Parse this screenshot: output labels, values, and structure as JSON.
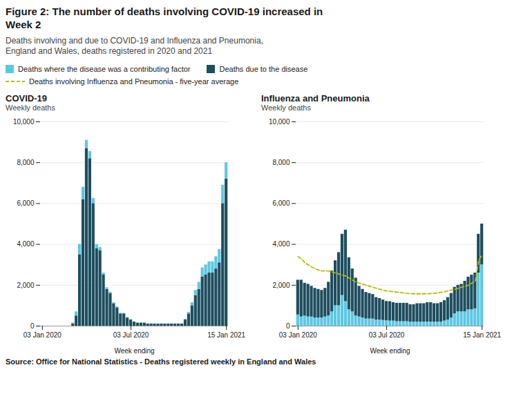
{
  "title": [
    "Figure 2: The number of deaths involving COVID-19 increased in",
    "Week 2"
  ],
  "subtitle": [
    "Deaths involving and due to COVID-19 and Influenza and Pneumonia,",
    "England and Wales, deaths registered in 2020 and 2021"
  ],
  "source": "Source: Office for National Statistics - Deaths registered weekly in England and Wales",
  "chart_data": [
    {
      "type": "bar",
      "title": "COVID-19",
      "y_label": "Weekly deaths",
      "x_label": "Week ending",
      "stacked": true,
      "grid": true,
      "categories": [
        "03 Jan 2020",
        null,
        null,
        null,
        null,
        null,
        null,
        null,
        null,
        null,
        null,
        null,
        null,
        null,
        null,
        null,
        null,
        null,
        null,
        null,
        null,
        null,
        null,
        null,
        null,
        null,
        "03 Jul 2020",
        null,
        null,
        null,
        null,
        null,
        null,
        null,
        null,
        null,
        null,
        null,
        null,
        null,
        null,
        null,
        null,
        null,
        null,
        null,
        null,
        null,
        null,
        null,
        null,
        null,
        null,
        null,
        "15 Jan 2021"
      ],
      "ylim": [
        0,
        10000
      ],
      "yticks": [
        0,
        {
          "value": 2000,
          "label": "2,000"
        },
        {
          "value": 4000,
          "label": "4,000"
        },
        {
          "value": 6000,
          "label": "6,000"
        },
        {
          "value": 8000,
          "label": "8,000"
        },
        {
          "value": 10000,
          "label": "10,000"
        }
      ],
      "series": [
        {
          "name": "Deaths due to the disease",
          "color": "#1D4E5F",
          "type": "bar",
          "values": [
            0,
            0,
            0,
            0,
            0,
            0,
            0,
            0,
            0,
            100,
            500,
            3500,
            6200,
            8700,
            8200,
            6000,
            3800,
            3700,
            2500,
            1800,
            1600,
            1100,
            900,
            600,
            600,
            400,
            300,
            200,
            150,
            150,
            150,
            100,
            100,
            100,
            100,
            100,
            100,
            100,
            100,
            100,
            100,
            100,
            300,
            600,
            1000,
            1500,
            1800,
            2400,
            2500,
            2600,
            2600,
            2800,
            3100,
            6000,
            7200
          ]
        },
        {
          "name": "Deaths where the disease was a contributing factor",
          "color": "#5BC8E3",
          "type": "bar",
          "values": [
            0,
            0,
            0,
            0,
            0,
            0,
            0,
            0,
            0,
            50,
            200,
            500,
            600,
            400,
            350,
            250,
            200,
            150,
            100,
            80,
            60,
            50,
            40,
            30,
            30,
            25,
            20,
            15,
            15,
            15,
            15,
            15,
            15,
            15,
            15,
            15,
            15,
            15,
            15,
            15,
            15,
            15,
            40,
            80,
            150,
            250,
            350,
            450,
            500,
            550,
            550,
            600,
            650,
            900,
            800
          ]
        }
      ]
    },
    {
      "type": "bar",
      "title": "Influenza and Pneumonia",
      "y_label": "Weekly deaths",
      "x_label": "Week ending",
      "stacked": true,
      "grid": true,
      "categories": [
        "03 Jan 2020",
        null,
        null,
        null,
        null,
        null,
        null,
        null,
        null,
        null,
        null,
        null,
        null,
        null,
        null,
        null,
        null,
        null,
        null,
        null,
        null,
        null,
        null,
        null,
        null,
        null,
        "03 Jul 2020",
        null,
        null,
        null,
        null,
        null,
        null,
        null,
        null,
        null,
        null,
        null,
        null,
        null,
        null,
        null,
        null,
        null,
        null,
        null,
        null,
        null,
        null,
        null,
        null,
        null,
        null,
        null,
        "15 Jan 2021"
      ],
      "ylim": [
        0,
        10000
      ],
      "yticks": [
        0,
        {
          "value": 2000,
          "label": "2,000"
        },
        {
          "value": 4000,
          "label": "4,000"
        },
        {
          "value": 6000,
          "label": "6,000"
        },
        {
          "value": 8000,
          "label": "8,000"
        },
        {
          "value": 10000,
          "label": "10,000"
        }
      ],
      "series": [
        {
          "name": "Deaths where the disease was a contributing factor",
          "color": "#5BC8E3",
          "type": "bar",
          "values": [
            550,
            450,
            500,
            450,
            450,
            400,
            400,
            400,
            450,
            500,
            700,
            1000,
            1000,
            1500,
            1200,
            800,
            700,
            500,
            450,
            400,
            350,
            350,
            350,
            300,
            300,
            280,
            260,
            250,
            250,
            220,
            220,
            220,
            220,
            200,
            200,
            200,
            200,
            200,
            200,
            200,
            200,
            200,
            200,
            250,
            300,
            400,
            600,
            700,
            700,
            700,
            800,
            800,
            850,
            2600,
            3000
          ]
        },
        {
          "name": "Deaths due to the disease",
          "color": "#1D4E5F",
          "type": "bar",
          "values": [
            1700,
            1800,
            1600,
            1600,
            1500,
            1450,
            1400,
            1350,
            1400,
            1650,
            2000,
            2200,
            2600,
            3000,
            3500,
            2550,
            2100,
            1850,
            1500,
            1400,
            1300,
            1250,
            1200,
            1100,
            1050,
            1000,
            950,
            950,
            900,
            900,
            900,
            900,
            900,
            850,
            850,
            900,
            900,
            900,
            950,
            950,
            900,
            900,
            950,
            1000,
            1100,
            1200,
            1300,
            1300,
            1350,
            1500,
            1600,
            1700,
            1750,
            1900,
            2000
          ]
        },
        {
          "name": "Deaths involving Influenza and Pneumonia - five-year average",
          "color": "#b5bd00",
          "type": "line",
          "line_style": "dashed",
          "values": [
            3400,
            3300,
            3100,
            3000,
            2900,
            2800,
            2750,
            2700,
            2700,
            2700,
            2650,
            2600,
            2550,
            2500,
            2450,
            2350,
            2250,
            2150,
            2100,
            2050,
            2000,
            1950,
            1900,
            1850,
            1800,
            1750,
            1720,
            1700,
            1680,
            1660,
            1640,
            1620,
            1600,
            1590,
            1580,
            1580,
            1580,
            1580,
            1580,
            1590,
            1600,
            1620,
            1650,
            1680,
            1720,
            1760,
            1800,
            1850,
            1900,
            1950,
            2000,
            2100,
            2200,
            3200,
            3500
          ]
        }
      ]
    }
  ]
}
